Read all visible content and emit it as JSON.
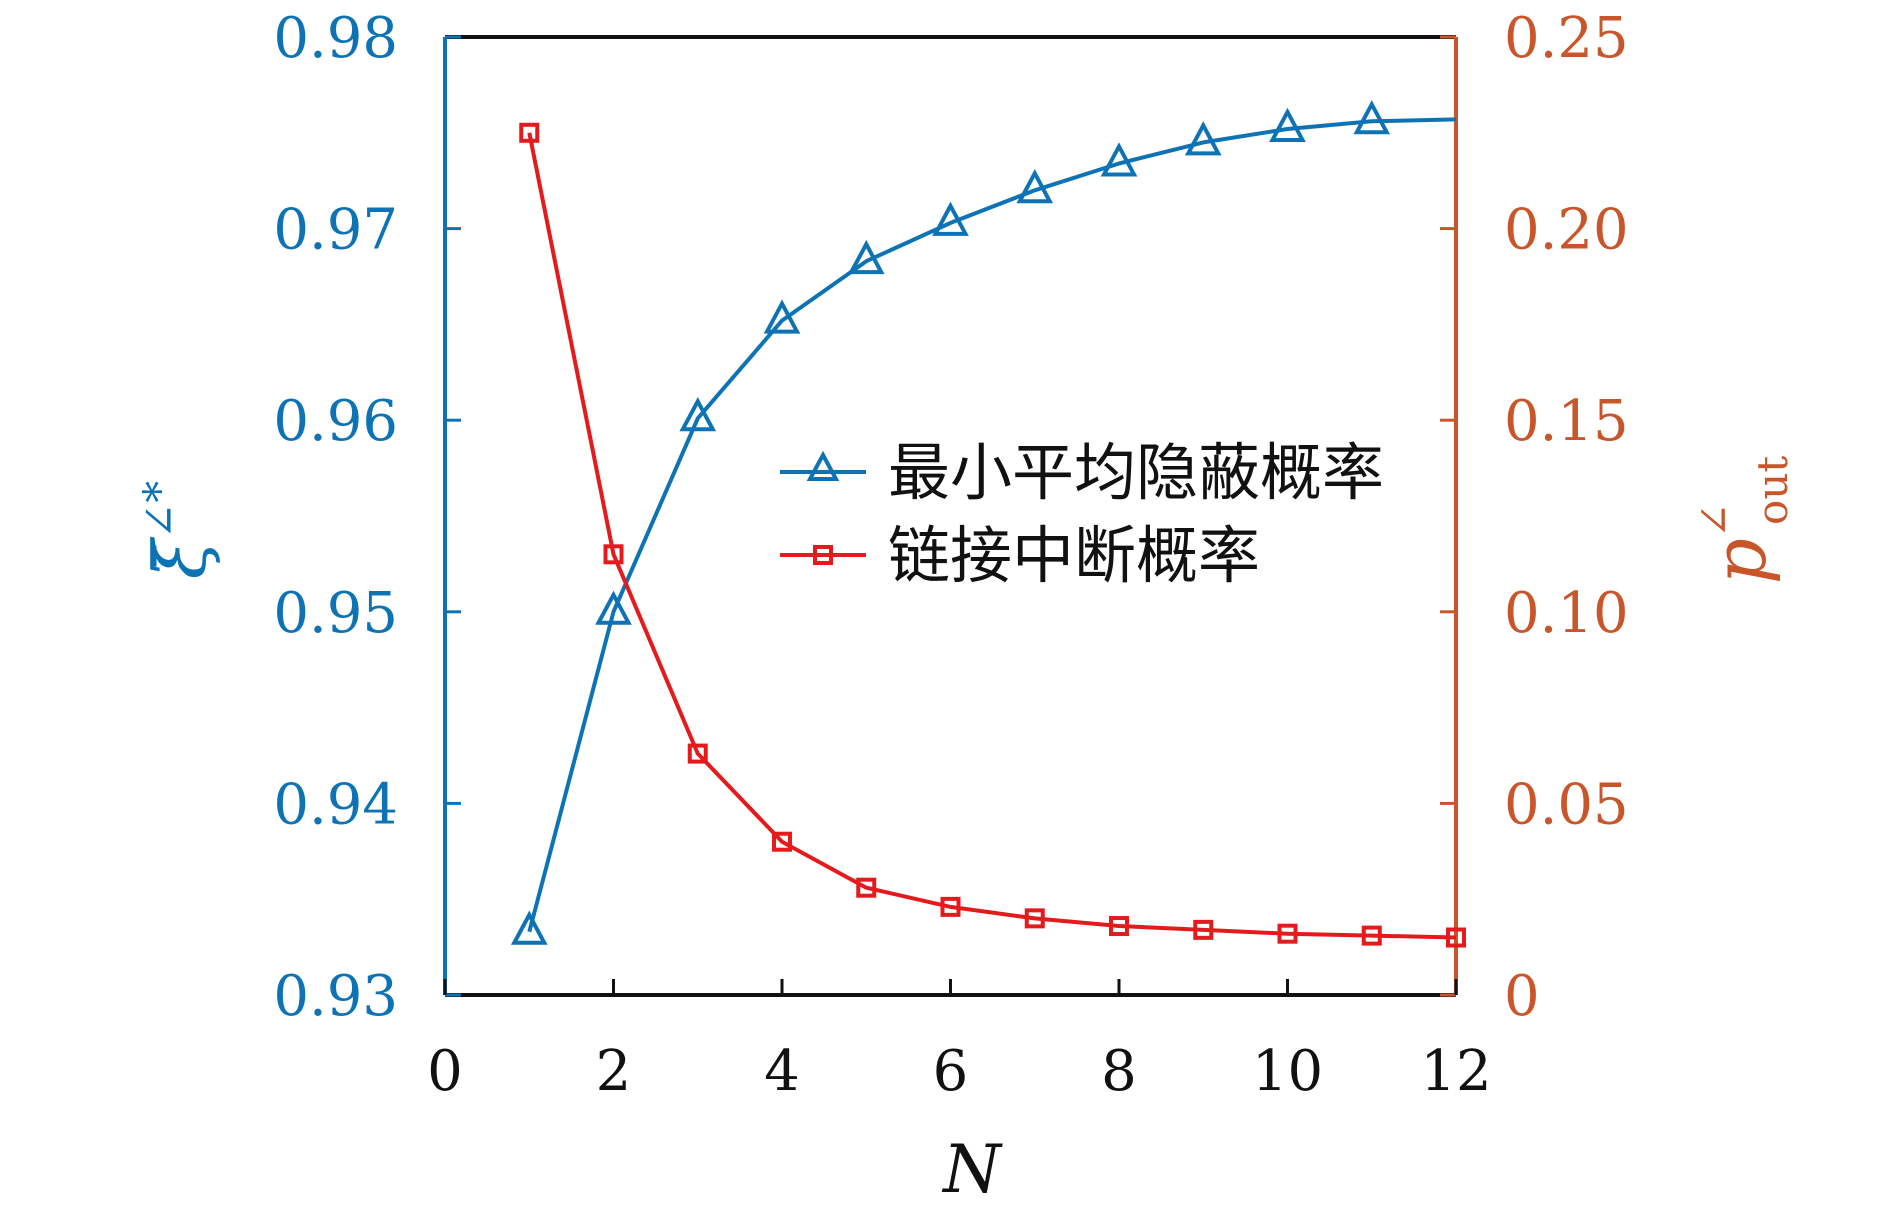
{
  "chart_data": {
    "type": "line",
    "xlabel": "N",
    "ylabel_left": "ξ̄",
    "ylabel_left_sup": "∠*",
    "ylabel_right": "p",
    "ylabel_right_sub": "out",
    "ylabel_right_sup": "∠",
    "xlim": [
      0,
      12
    ],
    "ylim_left": [
      0.93,
      0.98
    ],
    "ylim_right": [
      0,
      0.25
    ],
    "xticks": [
      "0",
      "2",
      "4",
      "6",
      "8",
      "10",
      "12"
    ],
    "yticks_left": [
      "0.93",
      "0.94",
      "0.95",
      "0.96",
      "0.97",
      "0.98"
    ],
    "yticks_right": [
      "0",
      "0.05",
      "0.10",
      "0.15",
      "0.20",
      "0.25"
    ],
    "grid": false,
    "legend_position": "center-right",
    "colors": {
      "left_axis": "#0e73b5",
      "right_axis": "#c8562a",
      "series_red": "#e41a1c"
    },
    "series": [
      {
        "name": "最小平均隐蔽概率",
        "axis": "left",
        "marker": "triangle",
        "color": "#0e73b5",
        "x": [
          1,
          2,
          3,
          4,
          5,
          6,
          7,
          8,
          9,
          10,
          11,
          12
        ],
        "values": [
          0.9333,
          0.95,
          0.9601,
          0.9652,
          0.9683,
          0.9703,
          0.972,
          0.9734,
          0.9745,
          0.9752,
          0.9756,
          0.9757
        ],
        "marker_points": 11
      },
      {
        "name": "链接中断概率",
        "axis": "right",
        "marker": "square",
        "color": "#e41a1c",
        "x": [
          1,
          2,
          3,
          4,
          5,
          6,
          7,
          8,
          9,
          10,
          11,
          12
        ],
        "values": [
          0.225,
          0.115,
          0.063,
          0.04,
          0.028,
          0.023,
          0.02,
          0.018,
          0.017,
          0.016,
          0.0155,
          0.015
        ],
        "marker_points": 12
      }
    ]
  }
}
